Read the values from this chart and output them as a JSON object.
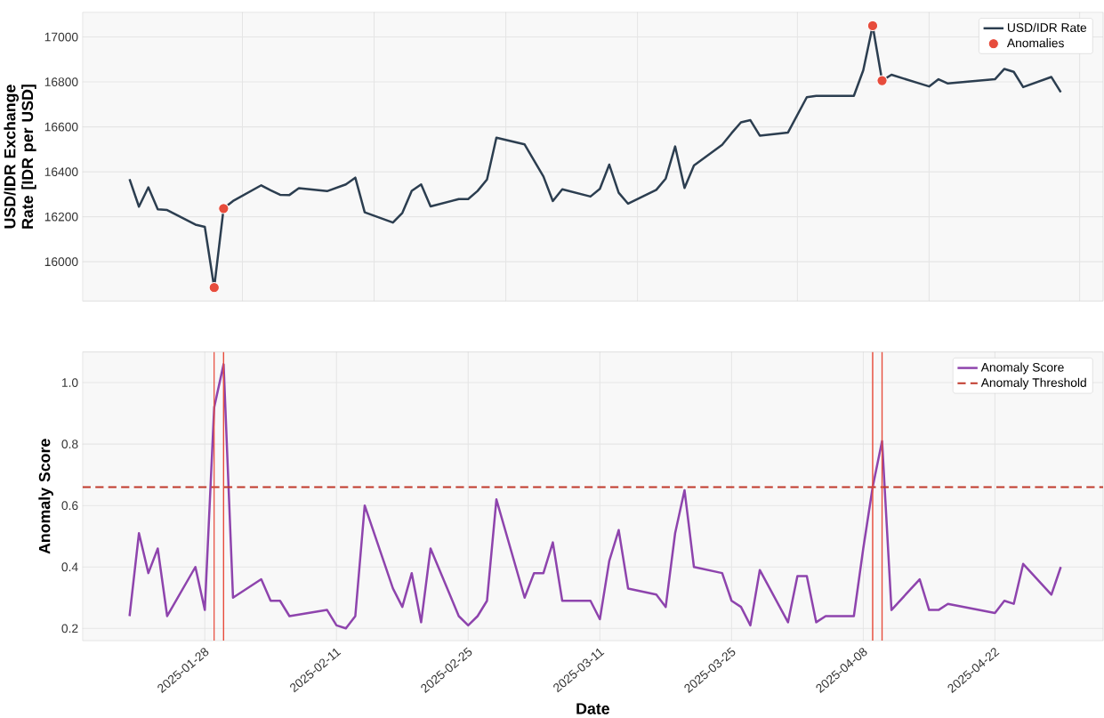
{
  "chart_data": [
    {
      "type": "line",
      "ylabel": "USD/IDR Exchange Rate [IDR per USD]",
      "x": [
        "2025-01-20",
        "2025-01-21",
        "2025-01-22",
        "2025-01-23",
        "2025-01-24",
        "2025-01-27",
        "2025-01-28",
        "2025-01-29",
        "2025-01-30",
        "2025-01-31",
        "2025-02-03",
        "2025-02-04",
        "2025-02-05",
        "2025-02-06",
        "2025-02-07",
        "2025-02-10",
        "2025-02-12",
        "2025-02-13",
        "2025-02-14",
        "2025-02-17",
        "2025-02-18",
        "2025-02-19",
        "2025-02-20",
        "2025-02-21",
        "2025-02-24",
        "2025-02-25",
        "2025-02-26",
        "2025-02-27",
        "2025-02-28",
        "2025-03-03",
        "2025-03-04",
        "2025-03-05",
        "2025-03-06",
        "2025-03-07",
        "2025-03-10",
        "2025-03-11",
        "2025-03-12",
        "2025-03-13",
        "2025-03-14",
        "2025-03-17",
        "2025-03-18",
        "2025-03-19",
        "2025-03-20",
        "2025-03-21",
        "2025-03-24",
        "2025-03-25",
        "2025-03-26",
        "2025-03-27",
        "2025-03-28",
        "2025-03-31",
        "2025-04-02",
        "2025-04-03",
        "2025-04-07",
        "2025-04-08",
        "2025-04-09",
        "2025-04-10",
        "2025-04-11",
        "2025-04-14",
        "2025-04-15",
        "2025-04-16",
        "2025-04-17",
        "2025-04-22",
        "2025-04-23",
        "2025-04-24",
        "2025-04-25",
        "2025-04-28",
        "2025-04-29"
      ],
      "series": [
        {
          "name": "USD/IDR Rate",
          "color": "#2c3e50",
          "values": [
            16367,
            16245,
            16331,
            16233,
            16230,
            16165,
            16155,
            15885,
            16237,
            16270,
            16340,
            16318,
            16298,
            16297,
            16327,
            16314,
            16344,
            16374,
            16220,
            16174,
            16217,
            16315,
            16344,
            16246,
            16279,
            16279,
            16315,
            16366,
            16552,
            16522,
            16450,
            16379,
            16270,
            16322,
            16290,
            16324,
            16432,
            16307,
            16258,
            16320,
            16370,
            16513,
            16328,
            16428,
            16520,
            16572,
            16620,
            16630,
            16561,
            16575,
            16732,
            16738,
            16738,
            16852,
            17050,
            16806,
            16832,
            16793,
            16780,
            16812,
            16793,
            16812,
            16858,
            16845,
            16777,
            16822,
            16754
          ]
        },
        {
          "name": "Anomalies",
          "type": "scatter",
          "color": "#e74c3c",
          "x": [
            "2025-01-29",
            "2025-01-30",
            "2025-04-09",
            "2025-04-10"
          ],
          "values": [
            15885,
            16237,
            17050,
            16806
          ]
        }
      ],
      "xlim": [
        "2025-01-15",
        "2025-05-03T12:00"
      ],
      "xticks": [
        {
          "value": "2025-02-01",
          "label": null
        },
        {
          "value": "2025-02-15",
          "label": null
        },
        {
          "value": "2025-03-01",
          "label": null
        },
        {
          "value": "2025-03-15",
          "label": null
        },
        {
          "value": "2025-04-01",
          "label": null
        },
        {
          "value": "2025-04-15",
          "label": null
        },
        {
          "value": "2025-05-01",
          "label": null
        }
      ],
      "ylim": [
        15825,
        17110
      ],
      "yticks": [
        16000,
        16200,
        16400,
        16600,
        16800,
        17000
      ],
      "tick_labels": "y",
      "grid": true,
      "legend": "top right"
    },
    {
      "type": "line",
      "xlabel": "Date",
      "ylabel": "Anomaly Score",
      "x": [
        "2025-01-20",
        "2025-01-21",
        "2025-01-22",
        "2025-01-23",
        "2025-01-24",
        "2025-01-27",
        "2025-01-28",
        "2025-01-29",
        "2025-01-30",
        "2025-01-31",
        "2025-02-03",
        "2025-02-04",
        "2025-02-05",
        "2025-02-06",
        "2025-02-10",
        "2025-02-11",
        "2025-02-12",
        "2025-02-13",
        "2025-02-14",
        "2025-02-17",
        "2025-02-18",
        "2025-02-19",
        "2025-02-20",
        "2025-02-21",
        "2025-02-24",
        "2025-02-25",
        "2025-02-26",
        "2025-02-27",
        "2025-02-28",
        "2025-03-03",
        "2025-03-04",
        "2025-03-05",
        "2025-03-06",
        "2025-03-07",
        "2025-03-10",
        "2025-03-11",
        "2025-03-12",
        "2025-03-13",
        "2025-03-14",
        "2025-03-17",
        "2025-03-18",
        "2025-03-19",
        "2025-03-20",
        "2025-03-21",
        "2025-03-24",
        "2025-03-25",
        "2025-03-26",
        "2025-03-27",
        "2025-03-28",
        "2025-03-31",
        "2025-04-01",
        "2025-04-02",
        "2025-04-03",
        "2025-04-04",
        "2025-04-07",
        "2025-04-08",
        "2025-04-09",
        "2025-04-10",
        "2025-04-11",
        "2025-04-14",
        "2025-04-15",
        "2025-04-16",
        "2025-04-17",
        "2025-04-22",
        "2025-04-23",
        "2025-04-24",
        "2025-04-25",
        "2025-04-28",
        "2025-04-29"
      ],
      "series": [
        {
          "name": "Anomaly Score",
          "color": "#8e44ad",
          "values": [
            0.24,
            0.51,
            0.38,
            0.46,
            0.24,
            0.4,
            0.26,
            0.92,
            1.06,
            0.3,
            0.36,
            0.29,
            0.29,
            0.24,
            0.26,
            0.21,
            0.2,
            0.24,
            0.6,
            0.33,
            0.27,
            0.38,
            0.22,
            0.46,
            0.24,
            0.21,
            0.24,
            0.29,
            0.62,
            0.3,
            0.38,
            0.38,
            0.48,
            0.29,
            0.29,
            0.23,
            0.42,
            0.52,
            0.33,
            0.31,
            0.27,
            0.51,
            0.65,
            0.4,
            0.38,
            0.29,
            0.27,
            0.21,
            0.39,
            0.22,
            0.37,
            0.37,
            0.22,
            0.24,
            0.24,
            0.46,
            0.66,
            0.81,
            0.26,
            0.36,
            0.26,
            0.26,
            0.28,
            0.25,
            0.29,
            0.28,
            0.41,
            0.31,
            0.4
          ]
        }
      ],
      "ref_lines": [
        {
          "axis": "y",
          "value": 0.66,
          "label": "Anomaly Threshold",
          "color": "#c0392b",
          "line_style": "dashed"
        },
        {
          "axis": "x",
          "value": "2025-01-29",
          "color": "#e74c3c"
        },
        {
          "axis": "x",
          "value": "2025-01-30",
          "color": "#e74c3c"
        },
        {
          "axis": "x",
          "value": "2025-04-09",
          "color": "#e74c3c"
        },
        {
          "axis": "x",
          "value": "2025-04-10",
          "color": "#e74c3c"
        }
      ],
      "xlim": [
        "2025-01-15",
        "2025-05-03T12:00"
      ],
      "xticks": [
        "2025-01-28",
        "2025-02-11",
        "2025-02-25",
        "2025-03-11",
        "2025-03-25",
        "2025-04-08",
        "2025-04-22"
      ],
      "ylim": [
        0.16,
        1.1
      ],
      "yticks": [
        0.2,
        0.4,
        0.6,
        0.8,
        {
          "value": 1.0,
          "label": "1.0"
        }
      ],
      "grid": true,
      "legend": "top right"
    }
  ]
}
